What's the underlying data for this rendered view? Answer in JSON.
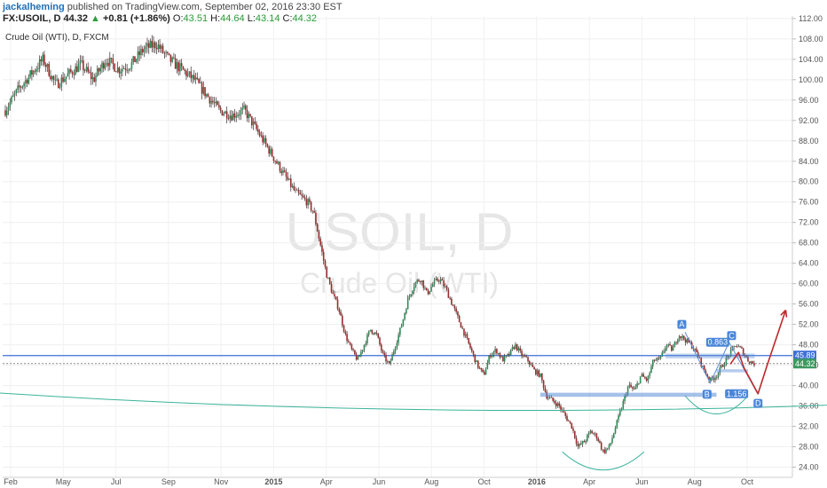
{
  "header": {
    "author": "jackalheming",
    "published": "published on TradingView.com, September 02, 2016 23:30 EST",
    "symbol": "FX:USOIL, D",
    "last": "44.32",
    "arrow": "▲",
    "change": "+0.81 (+1.86%)",
    "o_label": "O:",
    "o_value": "43.51",
    "h_label": "H:",
    "h_value": "44.64",
    "l_label": "L:",
    "l_value": "43.14",
    "c_label": "C:",
    "c_value": "44.32"
  },
  "legend_title": "Crude Oil (WTI), D, FXCM",
  "watermark": {
    "symbol": "USOIL, D",
    "name": "Crude Oil (WTI)"
  },
  "chart_data": {
    "type": "candlestick",
    "title": "Crude Oil (WTI), D, FXCM",
    "ylim": [
      22.0,
      112.5
    ],
    "y_ticks": [
      "24.00",
      "28.00",
      "32.00",
      "36.00",
      "40.00",
      "44.00",
      "48.00",
      "52.00",
      "56.00",
      "60.00",
      "64.00",
      "68.00",
      "72.00",
      "76.00",
      "80.00",
      "84.00",
      "88.00",
      "92.00",
      "96.00",
      "100.00",
      "104.00",
      "108.00",
      "112.00"
    ],
    "x_ticks": [
      "Feb",
      "May",
      "Jul",
      "Sep",
      "Nov",
      "2015",
      "Apr",
      "Jun",
      "Aug",
      "Oct",
      "2016",
      "Apr",
      "Jun",
      "Aug",
      "Oct"
    ],
    "price_path": [
      [
        0,
        94
      ],
      [
        2,
        98
      ],
      [
        4,
        101
      ],
      [
        6,
        104
      ],
      [
        8,
        99
      ],
      [
        10,
        101
      ],
      [
        12,
        103
      ],
      [
        14,
        100
      ],
      [
        16,
        104
      ],
      [
        18,
        102
      ],
      [
        20,
        103
      ],
      [
        22,
        106
      ],
      [
        24,
        107
      ],
      [
        26,
        104
      ],
      [
        28,
        102
      ],
      [
        30,
        100
      ],
      [
        32,
        97
      ],
      [
        34,
        94
      ],
      [
        36,
        93
      ],
      [
        38,
        94
      ],
      [
        40,
        90
      ],
      [
        42,
        86
      ],
      [
        44,
        82
      ],
      [
        46,
        78
      ],
      [
        48,
        76
      ],
      [
        49,
        74
      ],
      [
        50,
        68
      ],
      [
        51,
        62
      ],
      [
        52,
        58
      ],
      [
        53,
        55
      ],
      [
        54,
        50
      ],
      [
        55,
        47
      ],
      [
        56,
        45
      ],
      [
        57,
        48
      ],
      [
        58,
        51
      ],
      [
        59,
        50
      ],
      [
        60,
        46
      ],
      [
        61,
        44
      ],
      [
        62,
        48
      ],
      [
        63,
        52
      ],
      [
        64,
        57
      ],
      [
        65,
        60
      ],
      [
        66,
        61
      ],
      [
        67,
        58
      ],
      [
        68,
        60
      ],
      [
        69,
        61
      ],
      [
        70,
        59
      ],
      [
        71,
        56
      ],
      [
        72,
        53
      ],
      [
        73,
        50
      ],
      [
        74,
        47
      ],
      [
        75,
        44
      ],
      [
        76,
        42
      ],
      [
        77,
        46
      ],
      [
        78,
        47
      ],
      [
        79,
        45
      ],
      [
        80,
        46
      ],
      [
        81,
        48
      ],
      [
        82,
        46
      ],
      [
        83,
        45
      ],
      [
        84,
        43
      ],
      [
        85,
        42
      ],
      [
        86,
        38
      ],
      [
        87,
        37
      ],
      [
        88,
        36
      ],
      [
        89,
        34
      ],
      [
        90,
        32
      ],
      [
        91,
        28
      ],
      [
        92,
        29
      ],
      [
        93,
        31
      ],
      [
        94,
        30
      ],
      [
        95,
        27
      ],
      [
        96,
        28
      ],
      [
        97,
        32
      ],
      [
        98,
        36
      ],
      [
        99,
        40
      ],
      [
        100,
        39
      ],
      [
        101,
        42
      ],
      [
        102,
        41
      ],
      [
        103,
        45
      ],
      [
        104,
        45
      ],
      [
        105,
        48
      ],
      [
        106,
        47
      ],
      [
        107,
        50
      ],
      [
        108,
        49
      ],
      [
        109,
        48
      ],
      [
        110,
        46
      ],
      [
        111,
        43
      ],
      [
        112,
        41
      ],
      [
        113,
        42
      ],
      [
        114,
        44
      ],
      [
        115,
        46
      ],
      [
        116,
        48
      ],
      [
        117,
        47
      ],
      [
        118,
        45
      ],
      [
        119,
        44.32
      ]
    ],
    "horizontal_lines": [
      {
        "name": "resistance",
        "value": 45.89,
        "color": "#3d6fd6"
      },
      {
        "name": "last-price",
        "value": 44.32,
        "color": "#8a8a8a"
      }
    ],
    "price_badges": [
      {
        "label": "45.89",
        "value": 45.89,
        "color": "#3d6fd6"
      },
      {
        "label": "44.32",
        "value": 44.32,
        "color": "#3c9a5f"
      }
    ],
    "annotations": [
      {
        "label": "A",
        "type": "pivot"
      },
      {
        "label": "B",
        "type": "pivot"
      },
      {
        "label": "C",
        "type": "pivot"
      },
      {
        "label": "D",
        "type": "pivot"
      },
      {
        "label": "0.863",
        "type": "ratio"
      },
      {
        "label": "1.156",
        "type": "ratio"
      }
    ],
    "colors": {
      "up": "#2e8b57",
      "down": "#9b2d2d",
      "projection": "#c0282a",
      "levels": "#5b8ed6",
      "arc": "#3bb39a"
    }
  }
}
